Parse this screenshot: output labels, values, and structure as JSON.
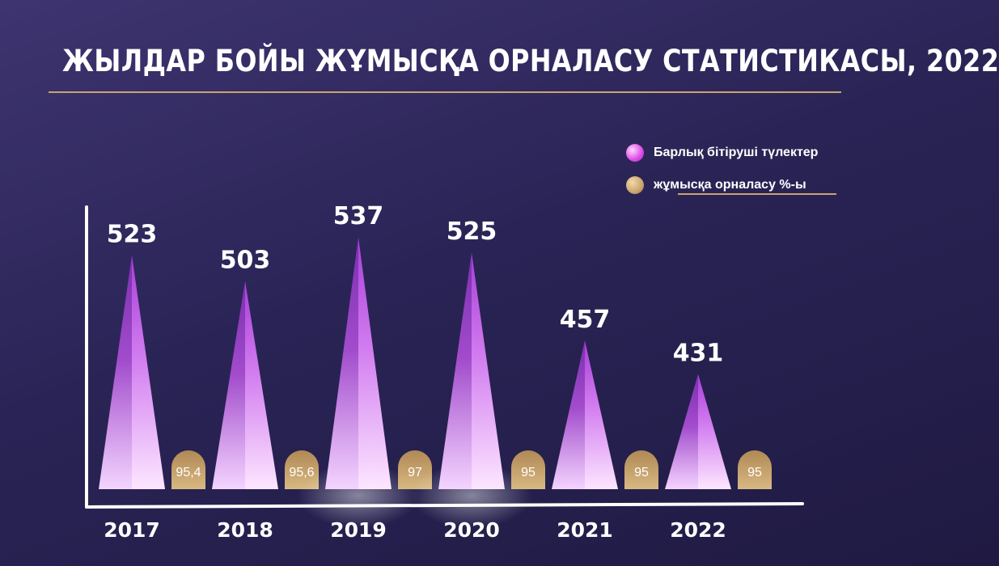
{
  "title": "ЖЫЛДАР БОЙЫ ЖҰМЫСҚА ОРНАЛАСУ СТАТИСТИКАСЫ, 2022",
  "legend": [
    {
      "label": "Барлық бітіруші түлектер",
      "color": "#e054e8"
    },
    {
      "label": "жұмысқа орналасу %-ы",
      "color": "#c9a56e"
    }
  ],
  "chart_data": {
    "type": "bar",
    "categories": [
      "2017",
      "2018",
      "2019",
      "2020",
      "2021",
      "2022"
    ],
    "series": [
      {
        "name": "Барлық бітіруші түлектер",
        "values": [
          523,
          503,
          537,
          525,
          457,
          431
        ],
        "color": "#e054e8"
      },
      {
        "name": "жұмысқа орналасу %-ы",
        "values": [
          95.4,
          95.6,
          97,
          95,
          95,
          95
        ],
        "color": "#c9a56e"
      }
    ],
    "value_labels": [
      "523",
      "503",
      "537",
      "525",
      "457",
      "431"
    ],
    "percent_labels": [
      "95,4",
      "95,6",
      "97",
      "95",
      "95",
      "95"
    ],
    "grid": false,
    "legend_position": "top-right"
  }
}
